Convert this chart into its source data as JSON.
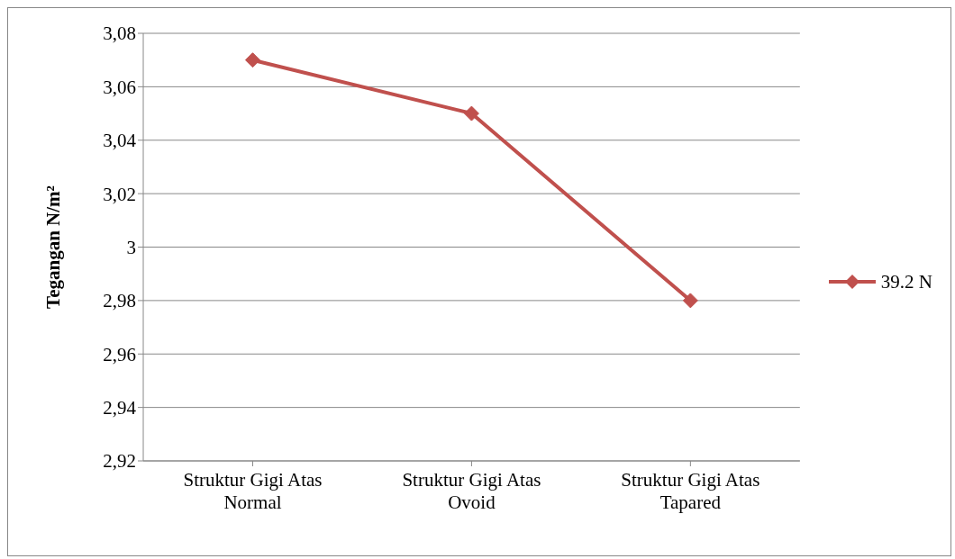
{
  "chart_data": {
    "type": "line",
    "ylabel": "Tegangan N/m²",
    "categories": [
      "Struktur Gigi Atas Normal",
      "Struktur Gigi Atas Ovoid",
      "Struktur Gigi Atas Tapared"
    ],
    "series": [
      {
        "name": "39.2 N",
        "color": "#c0504d",
        "values": [
          3.07,
          3.05,
          2.98
        ]
      }
    ],
    "ylim": [
      2.92,
      3.08
    ],
    "yticks": [
      {
        "value": 2.92,
        "label": "2,92"
      },
      {
        "value": 2.94,
        "label": "2,94"
      },
      {
        "value": 2.96,
        "label": "2,96"
      },
      {
        "value": 2.98,
        "label": "2,98"
      },
      {
        "value": 3,
        "label": "3"
      },
      {
        "value": 3.02,
        "label": "3,02"
      },
      {
        "value": 3.04,
        "label": "3,04"
      },
      {
        "value": 3.06,
        "label": "3,06"
      },
      {
        "value": 3.08,
        "label": "3,08"
      }
    ],
    "grid": "y",
    "legend": "right",
    "marker": "diamond",
    "line_style": "solid"
  }
}
